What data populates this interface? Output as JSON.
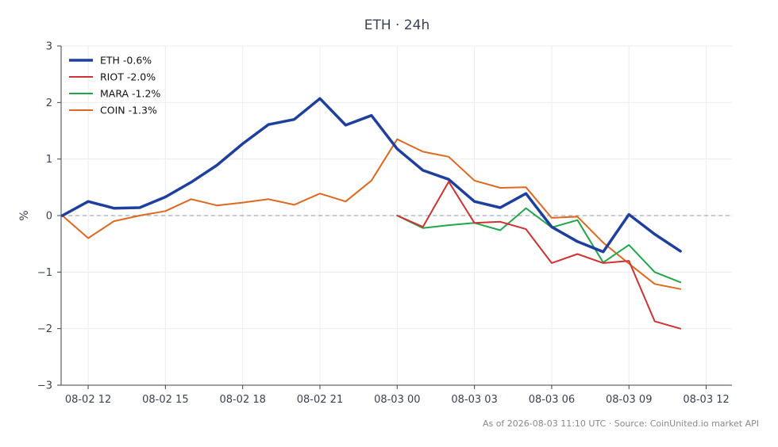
{
  "chart_data": {
    "type": "line",
    "title": "ETH · 24h",
    "xlabel": "",
    "ylabel": "%",
    "ylim": [
      -3,
      3
    ],
    "yticks": [
      -3,
      -2,
      -1,
      0,
      1,
      2,
      3
    ],
    "ytick_labels": [
      "−3",
      "−2",
      "−1",
      "0",
      "1",
      "2",
      "3"
    ],
    "xlim": [
      -1.05,
      25.0
    ],
    "xticks": [
      0,
      3,
      6,
      9,
      12,
      15,
      18,
      21,
      24
    ],
    "xtick_labels": [
      "08-02 12",
      "08-02 15",
      "08-02 18",
      "08-02 21",
      "08-03 00",
      "08-03 03",
      "08-03 06",
      "08-03 09",
      "08-03 12"
    ],
    "x_unit": "hours since 08-02 12:00",
    "grid": true,
    "legend_position": "top-left",
    "zero_line": true,
    "series": [
      {
        "name": "ETH -0.6%",
        "color": "#1f3f9e",
        "width": 3.5,
        "x": [
          -1,
          0,
          1,
          2,
          3,
          4,
          5,
          6,
          7,
          8,
          9,
          10,
          11,
          12,
          13,
          14,
          15,
          16,
          17,
          18,
          19,
          20,
          21,
          22,
          23
        ],
        "y": [
          0.0,
          0.25,
          0.13,
          0.14,
          0.33,
          0.59,
          0.89,
          1.27,
          1.61,
          1.7,
          2.07,
          1.6,
          1.77,
          1.18,
          0.8,
          0.64,
          0.25,
          0.14,
          0.39,
          -0.2,
          -0.46,
          -0.64,
          0.02,
          -0.33,
          -0.63
        ]
      },
      {
        "name": "RIOT -2.0%",
        "color": "#d03232",
        "width": 2,
        "x": [
          12,
          13,
          14,
          15,
          16,
          17,
          18,
          19,
          20,
          21,
          22,
          23
        ],
        "y": [
          0.0,
          -0.2,
          0.6,
          -0.13,
          -0.11,
          -0.24,
          -0.84,
          -0.68,
          -0.84,
          -0.8,
          -1.87,
          -2.0
        ]
      },
      {
        "name": "MARA -1.2%",
        "color": "#22a64a",
        "width": 2,
        "x": [
          12,
          13,
          14,
          15,
          16,
          17,
          18,
          19,
          20,
          21,
          22,
          23
        ],
        "y": [
          0.0,
          -0.22,
          -0.17,
          -0.13,
          -0.26,
          0.13,
          -0.21,
          -0.08,
          -0.83,
          -0.52,
          -1.0,
          -1.18
        ]
      },
      {
        "name": "COIN -1.3%",
        "color": "#e0671e",
        "width": 2,
        "x": [
          -1,
          0,
          1,
          2,
          3,
          4,
          5,
          6,
          7,
          8,
          9,
          10,
          11,
          12,
          13,
          14,
          15,
          16,
          17,
          18,
          19,
          20,
          21,
          22,
          23
        ],
        "y": [
          0.0,
          -0.4,
          -0.1,
          0.0,
          0.08,
          0.29,
          0.18,
          0.23,
          0.29,
          0.19,
          0.39,
          0.25,
          0.62,
          1.35,
          1.13,
          1.04,
          0.62,
          0.49,
          0.5,
          -0.04,
          -0.02,
          -0.48,
          -0.85,
          -1.21,
          -1.3
        ]
      }
    ]
  },
  "footer": {
    "note": "As of 2026-08-03 11:10 UTC · Source: CoinUnited.io market API"
  }
}
